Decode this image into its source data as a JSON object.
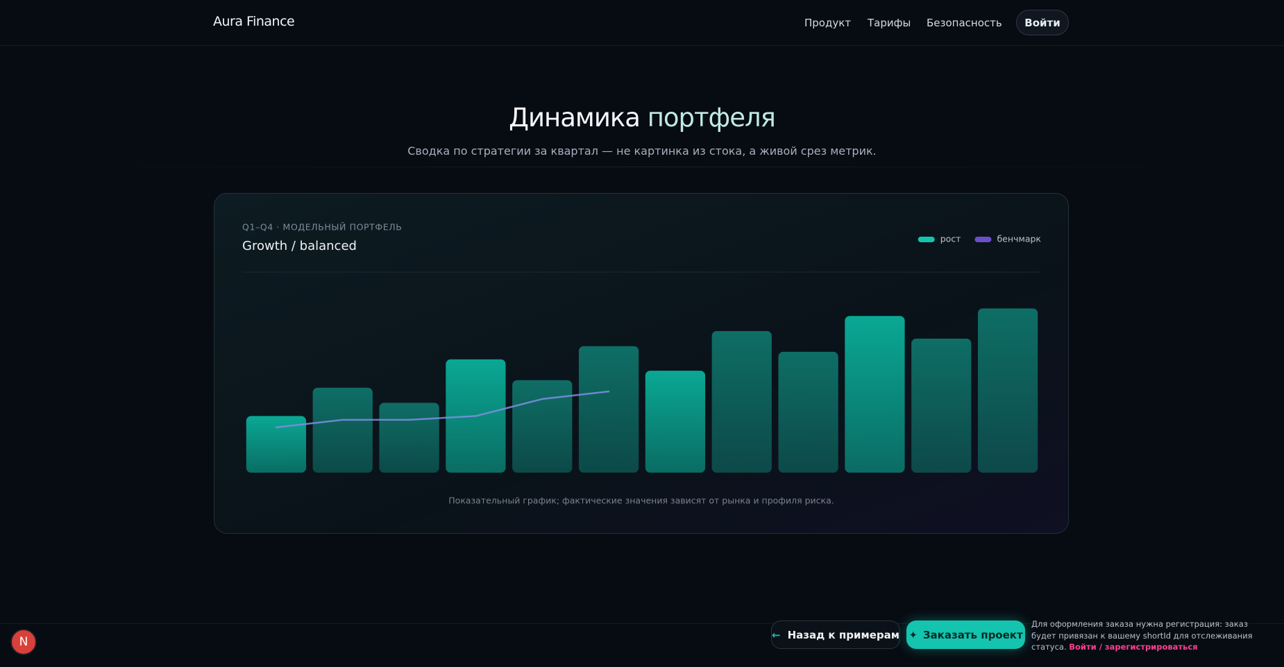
{
  "nav": {
    "brand": "Aura Finance",
    "links": [
      "Продукт",
      "Тарифы",
      "Безопасность"
    ],
    "login": "Войти"
  },
  "hero": {
    "title": "Динамика",
    "title_accent": "портфеля",
    "subtitle": "Сводка по стратегии за квартал — не картинка из стока, а живой срез метрик."
  },
  "chart_data": {
    "type": "bar",
    "kicker": "Q1–Q4 · МОДЕЛЬНЫЙ ПОРТФЕЛЬ",
    "title": "Growth / balanced",
    "categories": [
      null,
      null,
      null,
      null,
      null,
      null,
      null,
      null,
      null,
      null,
      null,
      null
    ],
    "ylim": [
      0,
      100
    ],
    "series": [
      {
        "name": "рост",
        "color": "#14c4ae",
        "colors": [
          "#0aa894",
          "#0e6e66",
          "#0e6e66",
          "#0aa894",
          "#0e6e66",
          "#0e6e66",
          "#0aa894",
          "#0e6e66",
          "#0e6e66",
          "#0aa894",
          "#0e6e66",
          "#0e6e66"
        ],
        "values": [
          30,
          45,
          37,
          60,
          49,
          67,
          54,
          75,
          64,
          83,
          71,
          87
        ]
      },
      {
        "name": "бенчмарк",
        "color": "#6a4fc8",
        "line_color": "#7d8fe0",
        "type": "line",
        "values": [
          24,
          28,
          28,
          30,
          39,
          43,
          null,
          null,
          null,
          null,
          null,
          null
        ]
      }
    ],
    "legend": "top-right",
    "grid": false,
    "footnote": "Показательный график; фактические значения зависят от рынка и профиля риска."
  },
  "footer": {
    "back": "Назад к примерам",
    "order": "Заказать проект",
    "notice": "Для оформления заказа нужна регистрация: заказ будет привязан к вашему shortId для отслеживания статуса.",
    "notice_link": "Войти / зарегистрироваться",
    "badge": "N"
  }
}
